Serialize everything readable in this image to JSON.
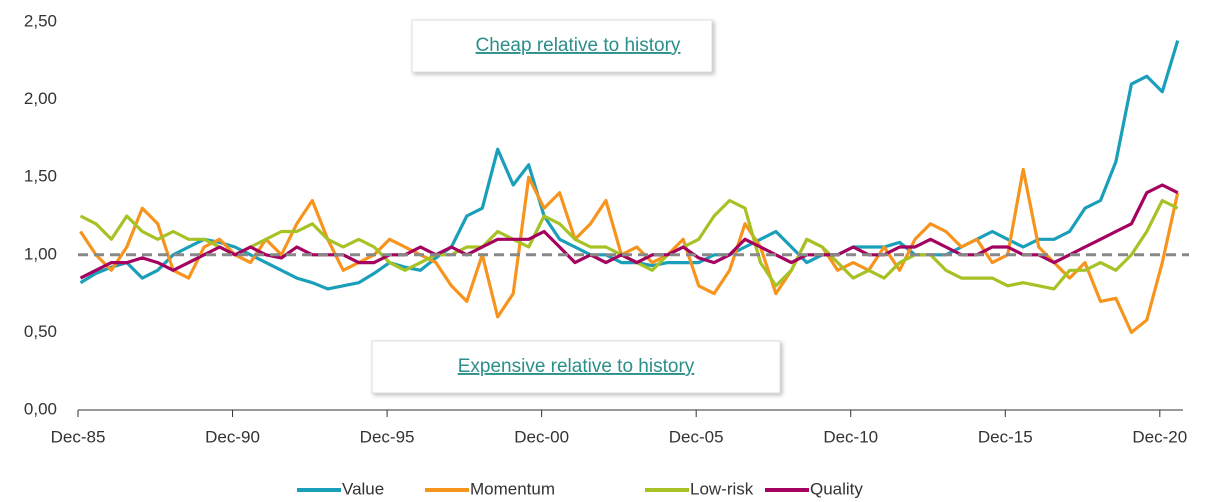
{
  "chart_data": {
    "type": "line",
    "annotations": [
      "Cheap relative to history",
      "Expensive relative to history"
    ],
    "reference_line": 1,
    "x": [
      1986,
      1986.5,
      1987,
      1987.5,
      1988,
      1988.5,
      1989,
      1989.5,
      1990,
      1990.5,
      1991,
      1991.5,
      1992,
      1992.5,
      1993,
      1993.5,
      1994,
      1994.5,
      1995,
      1995.5,
      1996,
      1996.5,
      1997,
      1997.5,
      1998,
      1998.5,
      1999,
      1999.5,
      2000,
      2000.5,
      2001,
      2001.5,
      2002,
      2002.5,
      2003,
      2003.5,
      2004,
      2004.5,
      2005,
      2005.5,
      2006,
      2006.5,
      2007,
      2007.5,
      2008,
      2008.5,
      2009,
      2009.5,
      2010,
      2010.5,
      2011,
      2011.5,
      2012,
      2012.5,
      2013,
      2013.5,
      2014,
      2014.5,
      2015,
      2015.5,
      2016,
      2016.5,
      2017,
      2017.5,
      2018,
      2018.5,
      2019,
      2019.5,
      2020,
      2020.5,
      2021,
      2021.5
    ],
    "series": [
      {
        "name": "Value",
        "color": "#1a9fba",
        "values": [
          0.82,
          0.88,
          0.92,
          0.95,
          0.85,
          0.9,
          1.0,
          1.05,
          1.1,
          1.08,
          1.05,
          1.0,
          0.95,
          0.9,
          0.85,
          0.82,
          0.78,
          0.8,
          0.82,
          0.88,
          0.95,
          0.92,
          0.9,
          0.98,
          1.05,
          1.25,
          1.3,
          1.68,
          1.45,
          1.58,
          1.25,
          1.1,
          1.05,
          1.0,
          1.0,
          0.95,
          0.95,
          0.93,
          0.95,
          0.95,
          0.95,
          1.0,
          1.0,
          1.05,
          1.1,
          1.15,
          1.05,
          0.95,
          1.0,
          1.0,
          1.05,
          1.05,
          1.05,
          1.08,
          1.0,
          1.0,
          1.0,
          1.05,
          1.1,
          1.15,
          1.1,
          1.05,
          1.1,
          1.1,
          1.15,
          1.3,
          1.35,
          1.6,
          2.1,
          2.15,
          2.05,
          2.38
        ]
      },
      {
        "name": "Momentum",
        "color": "#f7941d",
        "values": [
          1.15,
          1.0,
          0.9,
          1.05,
          1.3,
          1.2,
          0.9,
          0.85,
          1.05,
          1.1,
          1.0,
          0.95,
          1.1,
          1.0,
          1.2,
          1.35,
          1.1,
          0.9,
          0.95,
          1.0,
          1.1,
          1.05,
          1.0,
          0.95,
          0.8,
          0.7,
          1.0,
          0.6,
          0.75,
          1.5,
          1.3,
          1.4,
          1.1,
          1.2,
          1.35,
          1.0,
          1.05,
          0.95,
          1.0,
          1.1,
          0.8,
          0.75,
          0.9,
          1.2,
          1.05,
          0.75,
          0.9,
          1.1,
          1.05,
          0.9,
          0.95,
          0.9,
          1.05,
          0.9,
          1.1,
          1.2,
          1.15,
          1.05,
          1.1,
          0.95,
          1.0,
          1.55,
          1.05,
          0.95,
          0.85,
          0.95,
          0.7,
          0.72,
          0.5,
          0.58,
          0.95,
          1.4
        ]
      },
      {
        "name": "Low-risk",
        "color": "#a6c224",
        "values": [
          1.25,
          1.2,
          1.1,
          1.25,
          1.15,
          1.1,
          1.15,
          1.1,
          1.1,
          1.05,
          1.0,
          1.05,
          1.1,
          1.15,
          1.15,
          1.2,
          1.1,
          1.05,
          1.1,
          1.05,
          0.95,
          0.9,
          0.95,
          1.0,
          1.0,
          1.05,
          1.05,
          1.15,
          1.1,
          1.05,
          1.25,
          1.2,
          1.1,
          1.05,
          1.05,
          1.0,
          0.95,
          0.9,
          1.0,
          1.05,
          1.1,
          1.25,
          1.35,
          1.3,
          0.95,
          0.8,
          0.9,
          1.1,
          1.05,
          0.95,
          0.85,
          0.9,
          0.85,
          0.95,
          1.0,
          1.0,
          0.9,
          0.85,
          0.85,
          0.85,
          0.8,
          0.82,
          0.8,
          0.78,
          0.9,
          0.9,
          0.95,
          0.9,
          1.0,
          1.15,
          1.35,
          1.3
        ]
      },
      {
        "name": "Quality",
        "color": "#a5025f",
        "values": [
          0.85,
          0.9,
          0.95,
          0.95,
          0.98,
          0.95,
          0.9,
          0.95,
          1.0,
          1.05,
          1.0,
          1.05,
          1.0,
          0.98,
          1.05,
          1.0,
          1.0,
          1.0,
          0.95,
          0.95,
          1.0,
          1.0,
          1.05,
          1.0,
          1.05,
          1.0,
          1.05,
          1.1,
          1.1,
          1.1,
          1.15,
          1.05,
          0.95,
          1.0,
          0.95,
          1.0,
          0.95,
          1.0,
          1.0,
          1.05,
          0.98,
          0.95,
          1.0,
          1.1,
          1.05,
          1.0,
          0.95,
          1.0,
          1.0,
          1.0,
          1.05,
          1.0,
          1.0,
          1.05,
          1.05,
          1.1,
          1.05,
          1.0,
          1.0,
          1.05,
          1.05,
          1.0,
          1.0,
          0.95,
          1.0,
          1.05,
          1.1,
          1.15,
          1.2,
          1.4,
          1.45,
          1.4
        ]
      }
    ],
    "xlim": [
      1985.92,
      2021.67
    ],
    "xticks": [
      {
        "value": 1985.92,
        "label": "Dec-85"
      },
      {
        "value": 1990.92,
        "label": "Dec-90"
      },
      {
        "value": 1995.92,
        "label": "Dec-95"
      },
      {
        "value": 2000.92,
        "label": "Dec-00"
      },
      {
        "value": 2005.92,
        "label": "Dec-05"
      },
      {
        "value": 2010.92,
        "label": "Dec-10"
      },
      {
        "value": 2015.92,
        "label": "Dec-15"
      },
      {
        "value": 2020.92,
        "label": "Dec-20"
      }
    ],
    "ylim": [
      0,
      2.5
    ],
    "yticks": [
      {
        "value": 0,
        "label": "0,00"
      },
      {
        "value": 0.5,
        "label": "0,50"
      },
      {
        "value": 1,
        "label": "1,00"
      },
      {
        "value": 1.5,
        "label": "1,50"
      },
      {
        "value": 2,
        "label": "2,00"
      },
      {
        "value": 2.5,
        "label": "2,50"
      }
    ],
    "legend": "bottom"
  }
}
